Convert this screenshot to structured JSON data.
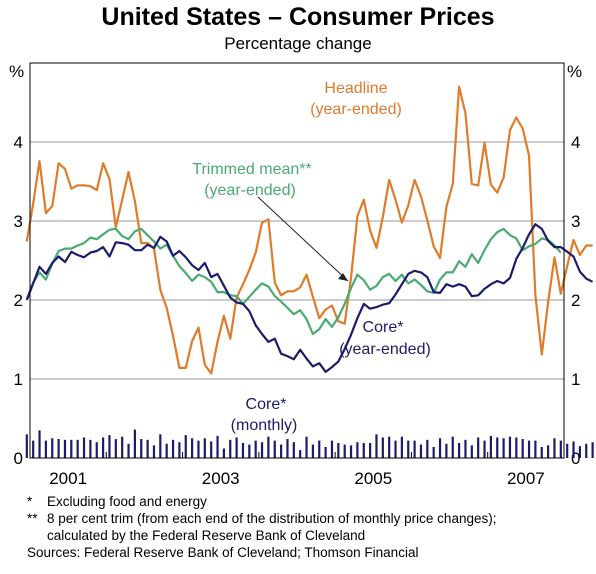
{
  "title": "United States – Consumer Prices",
  "subtitle": "Percentage change",
  "axis_unit_left": "%",
  "axis_unit_right": "%",
  "colors": {
    "headline": "#e07b2a",
    "trimmed_mean": "#4aaa72",
    "core": "#1b1c6b",
    "grid": "#9a9a9a",
    "frame": "#000000"
  },
  "annotations": {
    "headline_1": "Headline",
    "headline_2": "(year-ended)",
    "trimmed_1": "Trimmed mean**",
    "trimmed_2": "(year-ended)",
    "core_ye_1": "Core*",
    "core_ye_2": "(year-ended)",
    "core_m_1": "Core*",
    "core_m_2": "(monthly)"
  },
  "notes": {
    "n1_mark": "*",
    "n1_text": "Excluding food and energy",
    "n2_mark": "**",
    "n2_text": "8 per cent trim (from each end of the distribution of monthly price changes);",
    "n2_cont": "calculated by the Federal Reserve Bank of Cleveland",
    "sources": "Sources: Federal Reserve Bank of Cleveland; Thomson Financial"
  },
  "chart_data": {
    "type": "line",
    "x_start": "2000-01",
    "x_end": "2006-12",
    "x_ticks": [
      "2001",
      "2003",
      "2005",
      "2007"
    ],
    "ylim": [
      0,
      5
    ],
    "y_ticks": [
      "0",
      "1",
      "2",
      "3",
      "4"
    ],
    "grid": true,
    "series": [
      {
        "name": "Headline",
        "kind": "line",
        "values": [
          2.74,
          3.22,
          3.76,
          3.1,
          3.19,
          3.73,
          3.66,
          3.41,
          3.45,
          3.45,
          3.44,
          3.39,
          3.73,
          3.53,
          2.92,
          3.27,
          3.62,
          3.25,
          2.72,
          2.72,
          2.65,
          2.13,
          1.9,
          1.55,
          1.14,
          1.14,
          1.48,
          1.65,
          1.18,
          1.07,
          1.47,
          1.8,
          1.51,
          2.03,
          2.2,
          2.38,
          2.6,
          2.98,
          3.02,
          2.22,
          2.06,
          2.11,
          2.11,
          2.16,
          2.32,
          2.04,
          1.77,
          1.88,
          1.93,
          1.73,
          1.7,
          2.28,
          3.06,
          3.27,
          2.88,
          2.66,
          3.05,
          3.52,
          3.27,
          2.98,
          3.2,
          3.52,
          3.31,
          3.01,
          2.68,
          2.53,
          3.18,
          3.47,
          4.7,
          4.36,
          3.47,
          3.45,
          3.99,
          3.46,
          3.36,
          3.55,
          4.15,
          4.31,
          4.17,
          3.83,
          2.06,
          1.31,
          1.97,
          2.54,
          2.08,
          2.43,
          2.76,
          2.57,
          2.69,
          2.69
        ],
        "x_start": "1999-12"
      },
      {
        "name": "Trimmed mean",
        "kind": "line",
        "values": [
          2.01,
          2.22,
          2.35,
          2.26,
          2.46,
          2.62,
          2.65,
          2.65,
          2.69,
          2.72,
          2.79,
          2.77,
          2.83,
          2.89,
          2.9,
          2.81,
          2.77,
          2.87,
          2.9,
          2.82,
          2.74,
          2.65,
          2.7,
          2.56,
          2.43,
          2.34,
          2.24,
          2.32,
          2.29,
          2.23,
          2.1,
          2.1,
          2.06,
          2.05,
          1.95,
          2.04,
          2.13,
          2.21,
          2.17,
          2.05,
          1.98,
          1.9,
          1.82,
          1.87,
          1.76,
          1.57,
          1.63,
          1.76,
          1.66,
          1.78,
          1.95,
          2.15,
          2.32,
          2.25,
          2.13,
          2.18,
          2.29,
          2.33,
          2.24,
          2.32,
          2.21,
          2.26,
          2.19,
          2.11,
          2.09,
          2.26,
          2.35,
          2.35,
          2.49,
          2.42,
          2.58,
          2.47,
          2.63,
          2.77,
          2.86,
          2.9,
          2.82,
          2.78,
          2.63,
          2.68,
          2.71,
          2.78,
          2.76,
          2.69,
          2.6
        ],
        "x_start": "1999-12"
      },
      {
        "name": "Core",
        "kind": "line",
        "values": [
          2.0,
          2.21,
          2.42,
          2.33,
          2.47,
          2.55,
          2.48,
          2.61,
          2.57,
          2.54,
          2.6,
          2.62,
          2.67,
          2.55,
          2.73,
          2.72,
          2.7,
          2.63,
          2.63,
          2.7,
          2.66,
          2.8,
          2.74,
          2.56,
          2.62,
          2.54,
          2.44,
          2.38,
          2.47,
          2.29,
          2.33,
          2.18,
          2.03,
          1.97,
          1.95,
          1.86,
          1.68,
          1.57,
          1.47,
          1.51,
          1.32,
          1.29,
          1.25,
          1.37,
          1.26,
          1.16,
          1.2,
          1.09,
          1.15,
          1.22,
          1.38,
          1.56,
          1.77,
          1.95,
          1.89,
          1.91,
          1.94,
          1.96,
          2.07,
          2.2,
          2.33,
          2.37,
          2.35,
          2.29,
          2.1,
          2.09,
          2.2,
          2.17,
          2.2,
          2.17,
          2.05,
          2.06,
          2.14,
          2.2,
          2.24,
          2.21,
          2.28,
          2.52,
          2.66,
          2.83,
          2.96,
          2.9,
          2.75,
          2.67,
          2.67,
          2.61,
          2.55,
          2.36,
          2.27,
          2.23
        ],
        "x_start": "1999-12"
      },
      {
        "name": "Core (monthly)",
        "kind": "bar",
        "values": [
          0.3,
          0.22,
          0.35,
          0.22,
          0.25,
          0.24,
          0.23,
          0.23,
          0.23,
          0.26,
          0.23,
          0.2,
          0.26,
          0.29,
          0.24,
          0.27,
          0.18,
          0.36,
          0.24,
          0.23,
          0.16,
          0.3,
          0.18,
          0.23,
          0.2,
          0.29,
          0.25,
          0.22,
          0.25,
          0.21,
          0.28,
          0.12,
          0.23,
          0.26,
          0.19,
          0.17,
          0.22,
          0.2,
          0.27,
          0.22,
          0.17,
          0.24,
          0.2,
          0.1,
          0.27,
          0.17,
          0.22,
          0.14,
          0.22,
          0.19,
          0.17,
          0.16,
          0.2,
          0.19,
          0.19,
          0.3,
          0.26,
          0.27,
          0.22,
          0.27,
          0.22,
          0.22,
          0.17,
          0.23,
          0.14,
          0.25,
          0.18,
          0.27,
          0.19,
          0.23,
          0.16,
          0.26,
          0.22,
          0.28,
          0.26,
          0.25,
          0.27,
          0.26,
          0.24,
          0.22,
          0.22,
          0.14,
          0.16,
          0.25,
          0.22,
          0.18,
          0.21,
          0.15,
          0.18,
          0.2
        ],
        "x_start": "1999-12"
      }
    ]
  }
}
